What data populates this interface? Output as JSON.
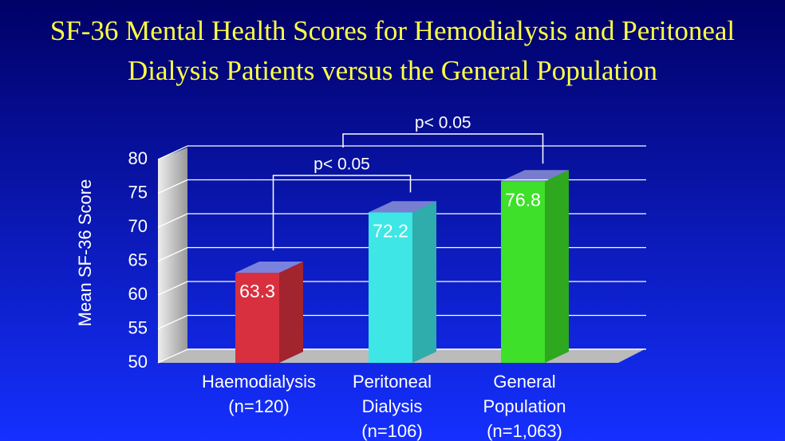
{
  "chart_data": {
    "type": "bar3d",
    "title": [
      "SF-36 Mental Health Scores for Hemodialysis and Peritoneal",
      "Dialysis Patients versus the General Population"
    ],
    "y_label": "Mean SF-36 Score",
    "categories": [
      [
        "Haemodialysis",
        "(n=120)"
      ],
      [
        "Peritoneal",
        "Dialysis",
        "(n=106)"
      ],
      [
        "General",
        "Population",
        "(n=1,063)"
      ]
    ],
    "values": [
      63.3,
      72.2,
      76.8
    ],
    "colors": [
      "#d8303e",
      "#3fe6e6",
      "#3ee02a"
    ],
    "ylim": [
      50,
      80
    ],
    "yticks": [
      50,
      55,
      60,
      65,
      70,
      75,
      80
    ],
    "grid": true,
    "annotations": [
      "p< 0.05",
      "p< 0.05"
    ]
  }
}
